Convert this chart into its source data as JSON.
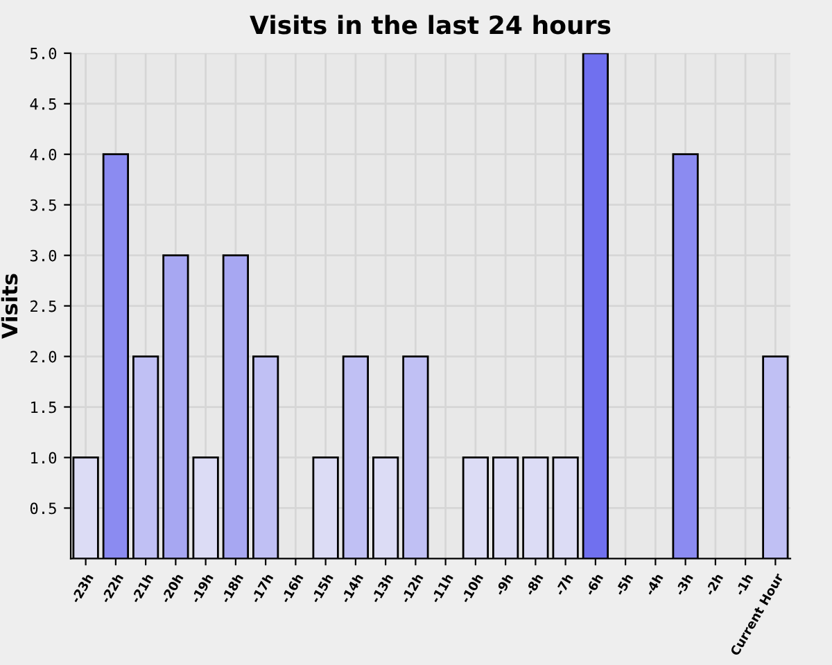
{
  "chart_data": {
    "type": "bar",
    "title": "Visits in the last 24 hours",
    "ylabel": "Visits",
    "categories": [
      "-23h",
      "-22h",
      "-21h",
      "-20h",
      "-19h",
      "-18h",
      "-17h",
      "-16h",
      "-15h",
      "-14h",
      "-13h",
      "-12h",
      "-11h",
      "-10h",
      "-9h",
      "-8h",
      "-7h",
      "-6h",
      "-5h",
      "-4h",
      "-3h",
      "-2h",
      "-1h",
      "Current Hour"
    ],
    "values": [
      1,
      4,
      2,
      3,
      1,
      3,
      2,
      0,
      1,
      2,
      1,
      2,
      0,
      1,
      1,
      1,
      1,
      5,
      0,
      0,
      4,
      0,
      0,
      2
    ],
    "colors": [
      "#dcdcf5",
      "#8b8bf1",
      "#c0c0f4",
      "#a7a7f2",
      "#dcdcf5",
      "#a7a7f2",
      "#c0c0f4",
      null,
      "#dcdcf5",
      "#c0c0f4",
      "#dcdcf5",
      "#c0c0f4",
      null,
      "#dcdcf5",
      "#dcdcf5",
      "#dcdcf5",
      "#dcdcf5",
      "#7070ef",
      null,
      null,
      "#8b8bf1",
      null,
      null,
      "#c0c0f4"
    ],
    "ylim": [
      0,
      5
    ],
    "yticks": [
      0.5,
      {
        "value": 1,
        "label": "1.0"
      },
      1.5,
      {
        "value": 2,
        "label": "2.0"
      },
      2.5,
      {
        "value": 3,
        "label": "3.0"
      },
      3.5,
      {
        "value": 4,
        "label": "4.0"
      },
      4.5,
      {
        "value": 5,
        "label": "5.0"
      }
    ],
    "grid": true
  }
}
